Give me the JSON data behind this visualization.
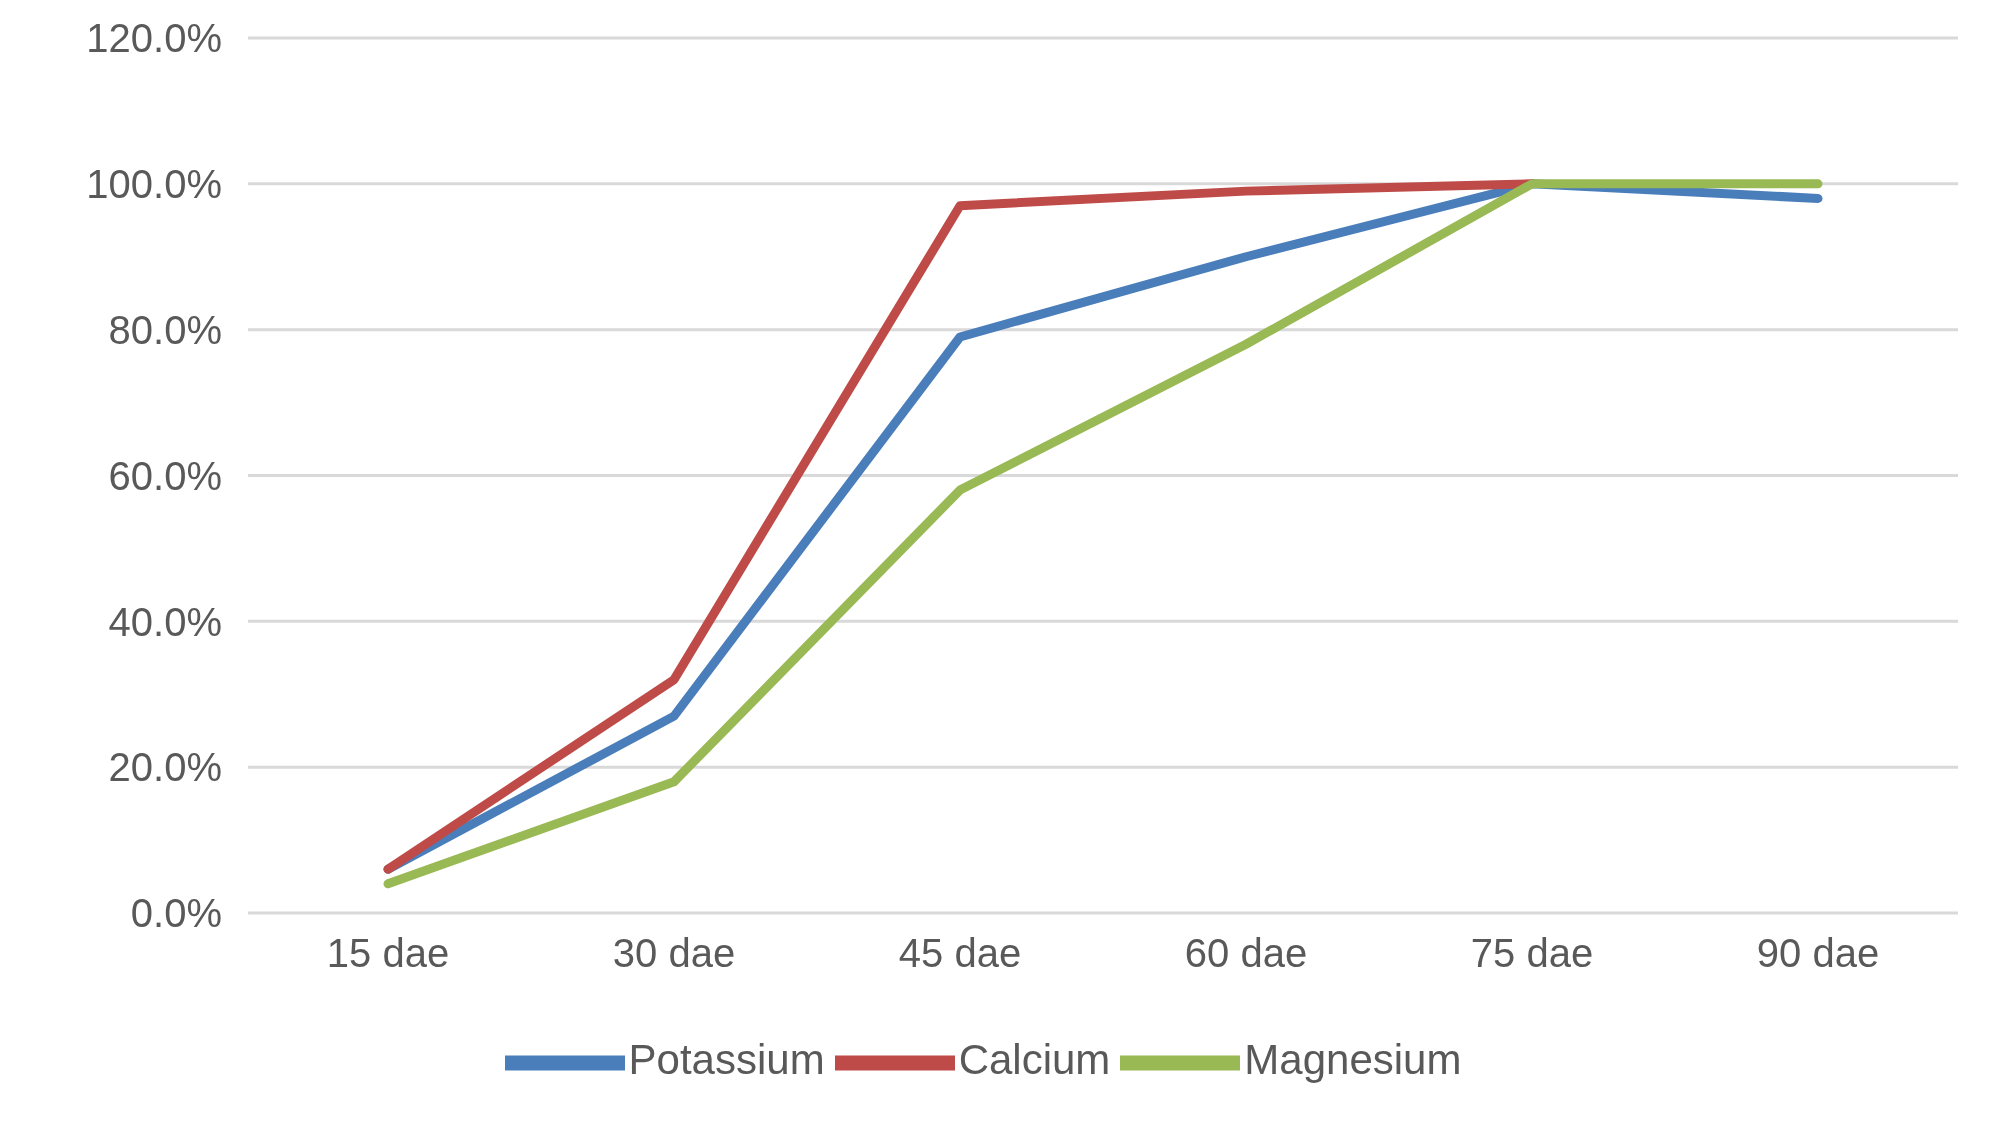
{
  "chart_data": {
    "type": "line",
    "categories": [
      "15 dae",
      "30 dae",
      "45 dae",
      "60 dae",
      "75 dae",
      "90 dae"
    ],
    "series": [
      {
        "name": "Potassium",
        "color": "#4a7ebb",
        "values": [
          6,
          27,
          79,
          90,
          100,
          98
        ]
      },
      {
        "name": "Calcium",
        "color": "#be4b48",
        "values": [
          6,
          32,
          97,
          99,
          100,
          null
        ]
      },
      {
        "name": "Magnesium",
        "color": "#98b954",
        "values": [
          4,
          18,
          58,
          78,
          100,
          100
        ]
      }
    ],
    "ylim": [
      0,
      120
    ],
    "yticks": [
      {
        "value": 0,
        "label": "0.0%"
      },
      {
        "value": 20,
        "label": "20.0%"
      },
      {
        "value": 40,
        "label": "40.0%"
      },
      {
        "value": 60,
        "label": "60.0%"
      },
      {
        "value": 80,
        "label": "80.0%"
      },
      {
        "value": 100,
        "label": "100.0%"
      },
      {
        "value": 120,
        "label": "120.0%"
      }
    ],
    "grid": "y",
    "legend": "bottom",
    "marker": "none",
    "line_style": "solid"
  }
}
